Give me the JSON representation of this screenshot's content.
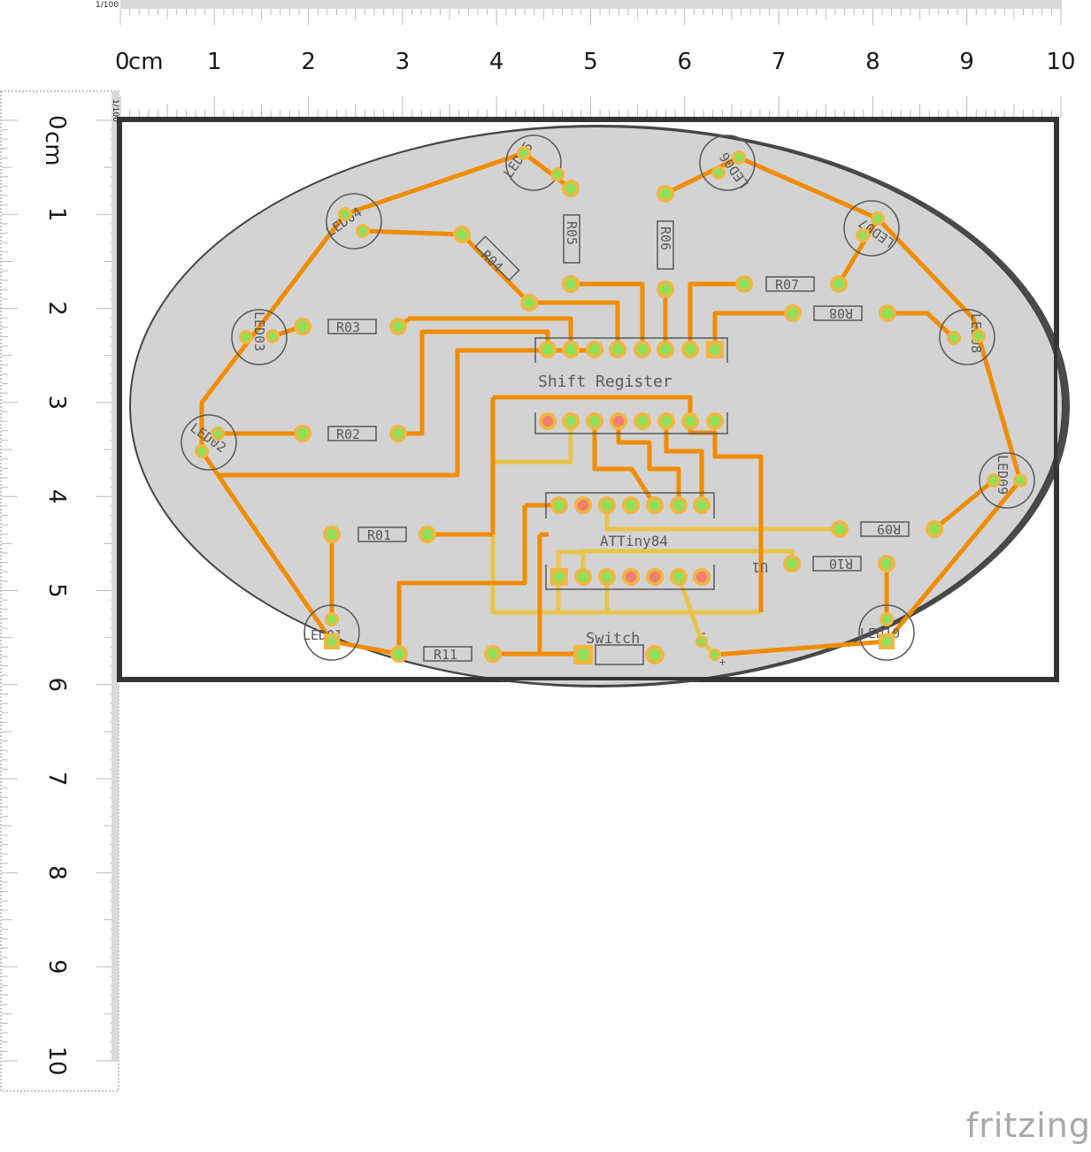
{
  "app": {
    "logo_text": "fritzing"
  },
  "rulers": {
    "scale_label": "1/100",
    "unit_label": "cm",
    "horizontal_ticks": [
      "0",
      "1",
      "2",
      "3",
      "4",
      "5",
      "6",
      "7",
      "8",
      "9",
      "10"
    ],
    "vertical_ticks": [
      "0",
      "1",
      "2",
      "3",
      "4",
      "5",
      "6",
      "7",
      "8",
      "9",
      "10"
    ]
  },
  "pcb": {
    "components": {
      "leds": [
        "LED01",
        "LED02",
        "LED03",
        "LED04",
        "LED05",
        "LED06",
        "LED07",
        "LED08",
        "LED09",
        "LED10"
      ],
      "resistors": [
        "R01",
        "R02",
        "R03",
        "R04",
        "R05",
        "R06",
        "R07",
        "R08",
        "R09",
        "R10",
        "R11"
      ],
      "shift_register": "Shift Register",
      "microcontroller": "ATTiny84",
      "switch": "Switch",
      "regulator": "U1",
      "minus_sign": "-",
      "plus_sign": "+"
    }
  },
  "colors": {
    "trace": "#f08c00",
    "trace_bottom": "#e8c44a",
    "pad_ring": "#f2b640",
    "pad_center": "#8ee05a",
    "pad_red": "#f08070",
    "board_fill": "#d3d3d3",
    "silkscreen": "#595959"
  }
}
